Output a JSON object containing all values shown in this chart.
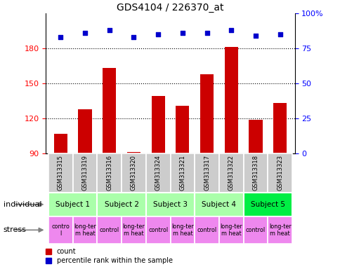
{
  "title": "GDS4104 / 226370_at",
  "samples": [
    "GSM313315",
    "GSM313319",
    "GSM313316",
    "GSM313320",
    "GSM313324",
    "GSM313321",
    "GSM313317",
    "GSM313322",
    "GSM313318",
    "GSM313323"
  ],
  "counts": [
    107,
    128,
    163,
    91,
    139,
    131,
    158,
    181,
    119,
    133
  ],
  "percentile_ranks": [
    83,
    86,
    88,
    83,
    85,
    86,
    86,
    88,
    84,
    85
  ],
  "ylim_left": [
    90,
    210
  ],
  "ylim_right": [
    0,
    100
  ],
  "yticks_left": [
    90,
    120,
    150,
    180
  ],
  "yticks_right": [
    0,
    25,
    50,
    75,
    100
  ],
  "subjects": [
    {
      "label": "Subject 1",
      "cols": [
        0,
        1
      ],
      "color": "#aaffaa"
    },
    {
      "label": "Subject 2",
      "cols": [
        2,
        3
      ],
      "color": "#aaffaa"
    },
    {
      "label": "Subject 3",
      "cols": [
        4,
        5
      ],
      "color": "#aaffaa"
    },
    {
      "label": "Subject 4",
      "cols": [
        6,
        7
      ],
      "color": "#aaffaa"
    },
    {
      "label": "Subject 5",
      "cols": [
        8,
        9
      ],
      "color": "#00ee44"
    }
  ],
  "stress": [
    {
      "label": "contro\nl",
      "col": 0,
      "color": "#ee88ee"
    },
    {
      "label": "long-ter\nm heat",
      "col": 1,
      "color": "#ee88ee"
    },
    {
      "label": "control",
      "col": 2,
      "color": "#ee88ee"
    },
    {
      "label": "long-ter\nm heat",
      "col": 3,
      "color": "#ee88ee"
    },
    {
      "label": "control",
      "col": 4,
      "color": "#ee88ee"
    },
    {
      "label": "long-ter\nm heat",
      "col": 5,
      "color": "#ee88ee"
    },
    {
      "label": "control",
      "col": 6,
      "color": "#ee88ee"
    },
    {
      "label": "long-ter\nm heat",
      "col": 7,
      "color": "#ee88ee"
    },
    {
      "label": "control",
      "col": 8,
      "color": "#ee88ee"
    },
    {
      "label": "long-ter\nm heat",
      "col": 9,
      "color": "#ee88ee"
    }
  ],
  "bar_color": "#CC0000",
  "dot_color": "#0000CC",
  "grid_color": "#000000",
  "sample_bg_color": "#CCCCCC",
  "individual_label": "individual",
  "stress_label": "stress",
  "legend_count": "count",
  "legend_percentile": "percentile rank within the sample"
}
